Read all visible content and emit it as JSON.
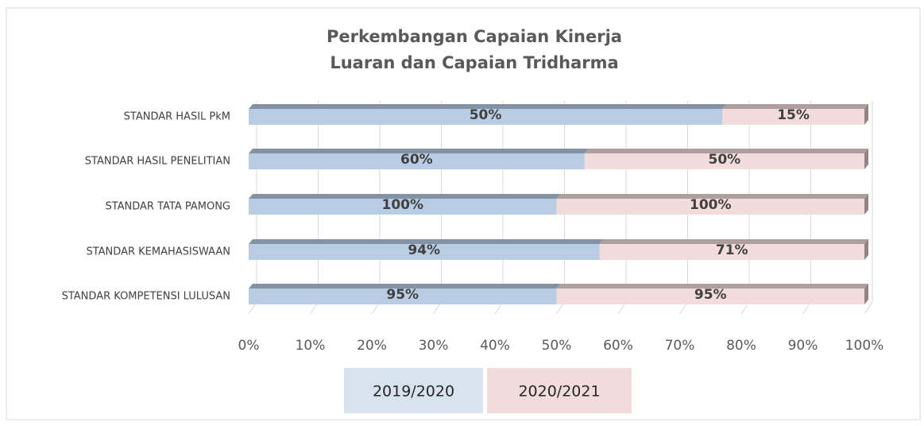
{
  "chart_data": {
    "type": "bar",
    "stacking": "percent",
    "orientation": "horizontal",
    "title": [
      "Perkembangan Capaian Kinerja",
      "Luaran dan Capaian Tridharma"
    ],
    "categories": [
      "STANDAR HASIL PkM",
      "STANDAR HASIL PENELITIAN",
      "STANDAR TATA PAMONG",
      "STANDAR KEMAHASISWAAN",
      "STANDAR KOMPETENSI LULUSAN"
    ],
    "series": [
      {
        "name": "2019/2020",
        "color": "#b8cce4",
        "values": [
          50,
          60,
          100,
          94,
          95
        ],
        "value_labels": [
          "50%",
          "60%",
          "100%",
          "94%",
          "95%"
        ]
      },
      {
        "name": "2020/2021",
        "color": "#f2dcdb",
        "values": [
          15,
          50,
          100,
          71,
          95
        ],
        "value_labels": [
          "15%",
          "50%",
          "100%",
          "71%",
          "95%"
        ]
      }
    ],
    "xlim": [
      0,
      100
    ],
    "xticks": [
      {
        "value": 0,
        "label": "0%"
      },
      {
        "value": 10,
        "label": "10%"
      },
      {
        "value": 20,
        "label": "20%"
      },
      {
        "value": 30,
        "label": "30%"
      },
      {
        "value": 40,
        "label": "40%"
      },
      {
        "value": 50,
        "label": "50%"
      },
      {
        "value": 60,
        "label": "60%"
      },
      {
        "value": 70,
        "label": "70%"
      },
      {
        "value": 80,
        "label": "80%"
      },
      {
        "value": 90,
        "label": "90%"
      },
      {
        "value": 100,
        "label": "100%"
      }
    ],
    "grid": true,
    "legend": "bottom"
  }
}
